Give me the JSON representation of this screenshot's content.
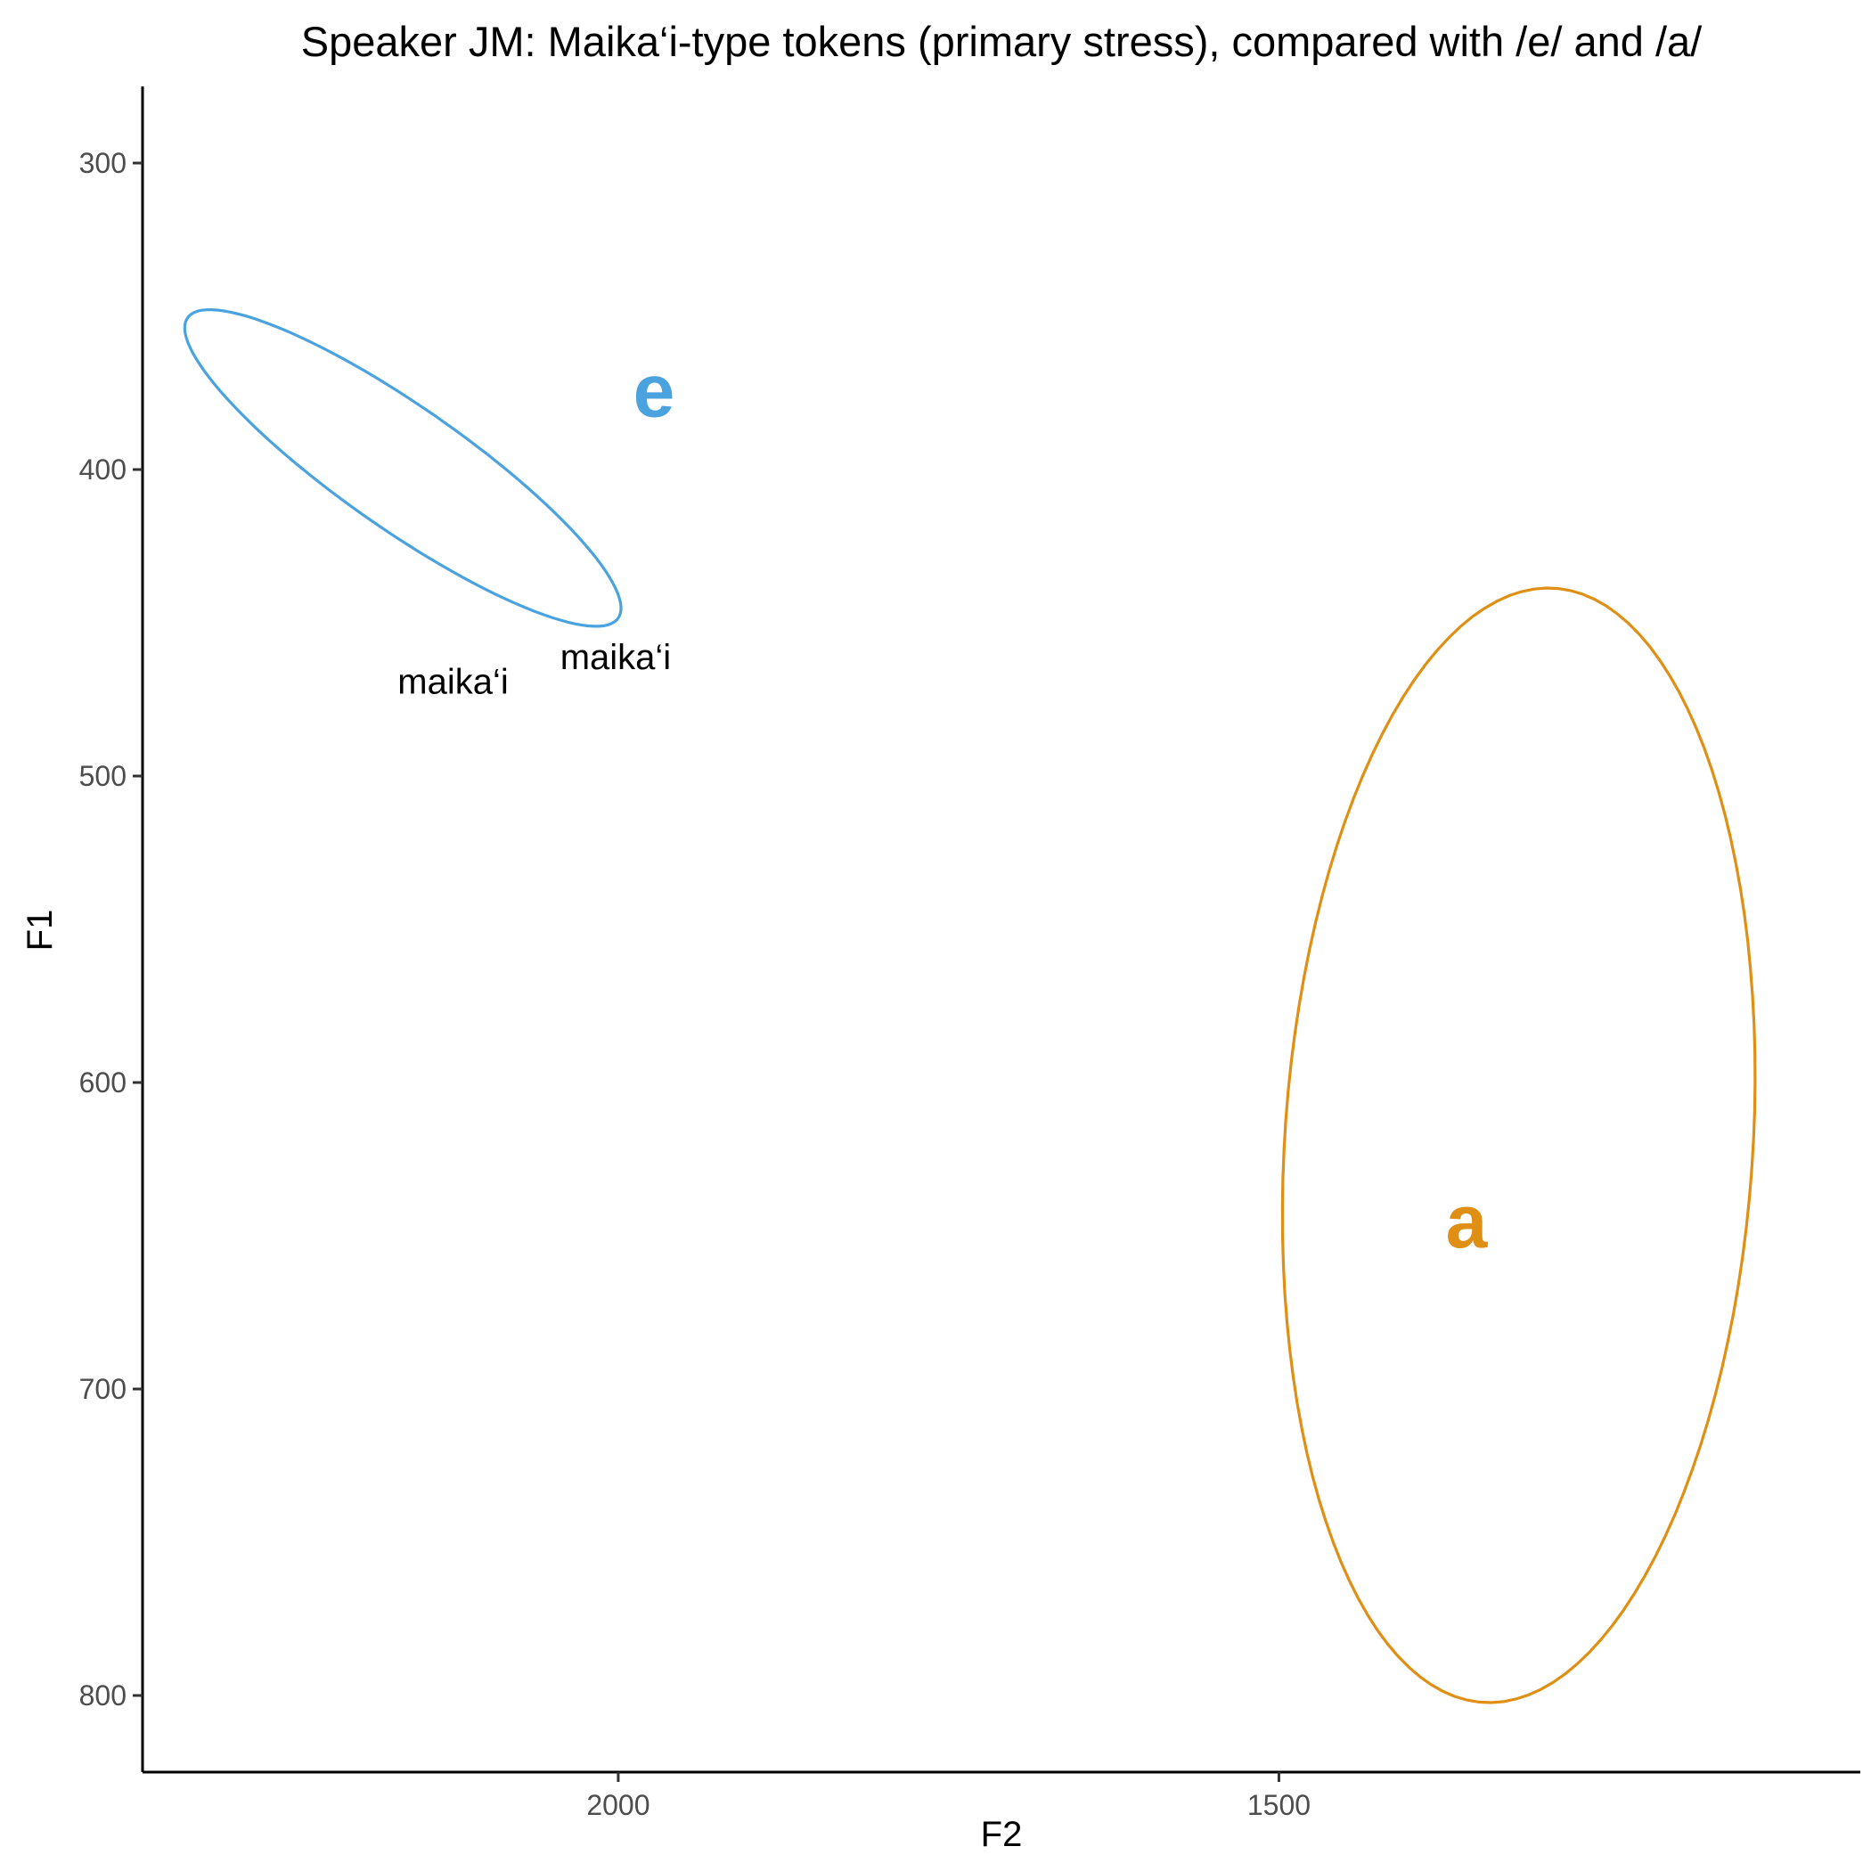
{
  "chart_data": {
    "type": "scatter",
    "title": "Speaker JM: Maika‘i-type tokens (primary stress), compared with /e/ and /a/",
    "xlabel": "F2",
    "ylabel": "F1",
    "x_reversed": true,
    "y_reversed": true,
    "xlim": [
      2360,
      1060
    ],
    "ylim": [
      275,
      825
    ],
    "x_ticks": [
      2000,
      1500
    ],
    "y_ticks": [
      300,
      400,
      500,
      600,
      700,
      800
    ],
    "grid": false,
    "legend": "none",
    "ellipses": [
      {
        "label": "e",
        "color": "#4aa3df",
        "center": [
          1973,
          374
        ],
        "label_pos": [
          1973,
          374
        ],
        "vertices": [
          [
            1998,
            446
          ],
          [
            2119,
            420
          ],
          [
            2219,
            373
          ],
          [
            2298,
            332
          ],
          [
            2328,
            353
          ],
          [
            2300,
            384
          ],
          [
            2230,
            418
          ],
          [
            2155,
            442
          ]
        ]
      },
      {
        "label": "a",
        "color": "#df8f14",
        "center": [
          1358,
          645
        ],
        "label_pos": [
          1358,
          645
        ],
        "vertices": [
          [
            1330,
            802
          ],
          [
            1241,
            694
          ],
          [
            1154,
            605
          ],
          [
            1237,
            495
          ],
          [
            1307,
            439
          ],
          [
            1426,
            505
          ],
          [
            1511,
            627
          ],
          [
            1441,
            727
          ]
        ]
      }
    ],
    "points": [
      {
        "label": "maika‘i",
        "x": 2125,
        "y": 469
      },
      {
        "label": "maika‘i",
        "x": 2002,
        "y": 461
      }
    ]
  }
}
